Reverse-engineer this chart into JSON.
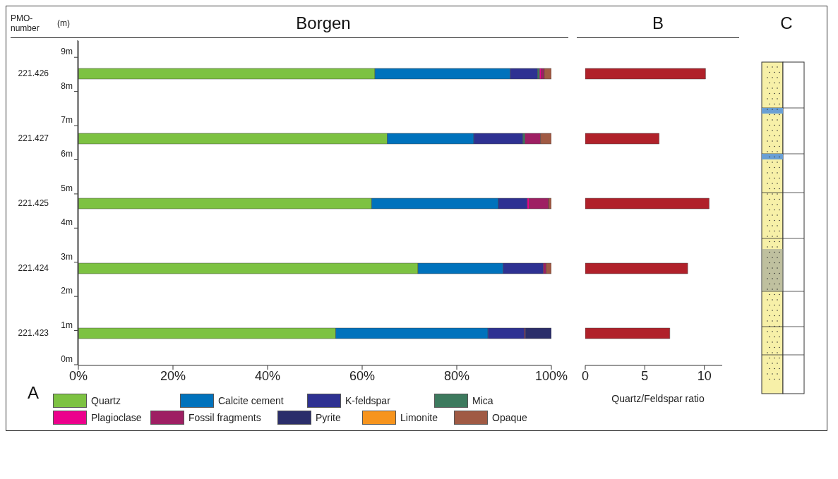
{
  "chart_data": [
    {
      "type": "bar",
      "title": "Borgen",
      "ylabel": "PMO-number",
      "y2label": "(m)",
      "orientation": "horizontal",
      "stacked": true,
      "categories": [
        "221.426",
        "221.427",
        "221.425",
        "221.424",
        "221.423"
      ],
      "series": [
        {
          "name": "Quartz",
          "color": "#7dc242",
          "values": [
            62.7,
            65.3,
            62.0,
            71.8,
            54.4
          ]
        },
        {
          "name": "Calcite cement",
          "color": "#0072bc",
          "values": [
            28.6,
            18.3,
            26.8,
            18.0,
            32.2
          ]
        },
        {
          "name": "K-feldspar",
          "color": "#2e3192",
          "values": [
            5.8,
            10.4,
            6.1,
            8.5,
            7.7
          ]
        },
        {
          "name": "Mica",
          "color": "#3d7a5e",
          "values": [
            0.4,
            0.4,
            0,
            0,
            0
          ]
        },
        {
          "name": "Plagioclase",
          "color": "#ec008c",
          "values": [
            0.4,
            0,
            0.4,
            0,
            0
          ]
        },
        {
          "name": "Fossil fragments",
          "color": "#9e1f63",
          "values": [
            0.6,
            3.3,
            4.1,
            0.6,
            0.2
          ]
        },
        {
          "name": "Pyrite",
          "color": "#2b2e6a",
          "values": [
            0,
            0,
            0,
            0,
            5.5
          ]
        },
        {
          "name": "Limonite",
          "color": "#f7941d",
          "values": [
            0,
            0,
            0,
            0,
            0
          ]
        },
        {
          "name": "Opaque",
          "color": "#a05a44",
          "values": [
            1.5,
            2.3,
            0.6,
            1.1,
            0
          ]
        }
      ],
      "xlim": [
        0,
        100
      ],
      "xticks": [
        {
          "value": 0,
          "label": "0%"
        },
        {
          "value": 20,
          "label": "20%"
        },
        {
          "value": 40,
          "label": "40%"
        },
        {
          "value": 60,
          "label": "60%"
        },
        {
          "value": 80,
          "label": "80%"
        },
        {
          "value": 100,
          "label": "100%"
        }
      ],
      "y2lim": [
        0,
        9.5
      ],
      "y2ticks": [
        {
          "value": 0,
          "label": "0m"
        },
        {
          "value": 1,
          "label": "1m"
        },
        {
          "value": 2,
          "label": "2m"
        },
        {
          "value": 3,
          "label": "3m"
        },
        {
          "value": 4,
          "label": "4m"
        },
        {
          "value": 5,
          "label": "5m"
        },
        {
          "value": 6,
          "label": "6m"
        },
        {
          "value": 7,
          "label": "7m"
        },
        {
          "value": 8,
          "label": "8m"
        },
        {
          "value": 9,
          "label": "9m"
        }
      ],
      "legend": "bottom",
      "annotations": [
        "A"
      ]
    },
    {
      "type": "bar",
      "title": "B",
      "xlabel": "Quartz/Feldspar ratio",
      "orientation": "horizontal",
      "tick_labels": "x",
      "categories": [
        "221.426",
        "221.427",
        "221.425",
        "221.424",
        "221.423"
      ],
      "values": [
        10.1,
        6.2,
        10.4,
        8.6,
        7.1
      ],
      "color": "#b0212a",
      "xlim": [
        0,
        11.5
      ],
      "xticks": [
        0,
        5,
        10
      ]
    },
    {
      "type": "other",
      "title": "C"
    }
  ]
}
